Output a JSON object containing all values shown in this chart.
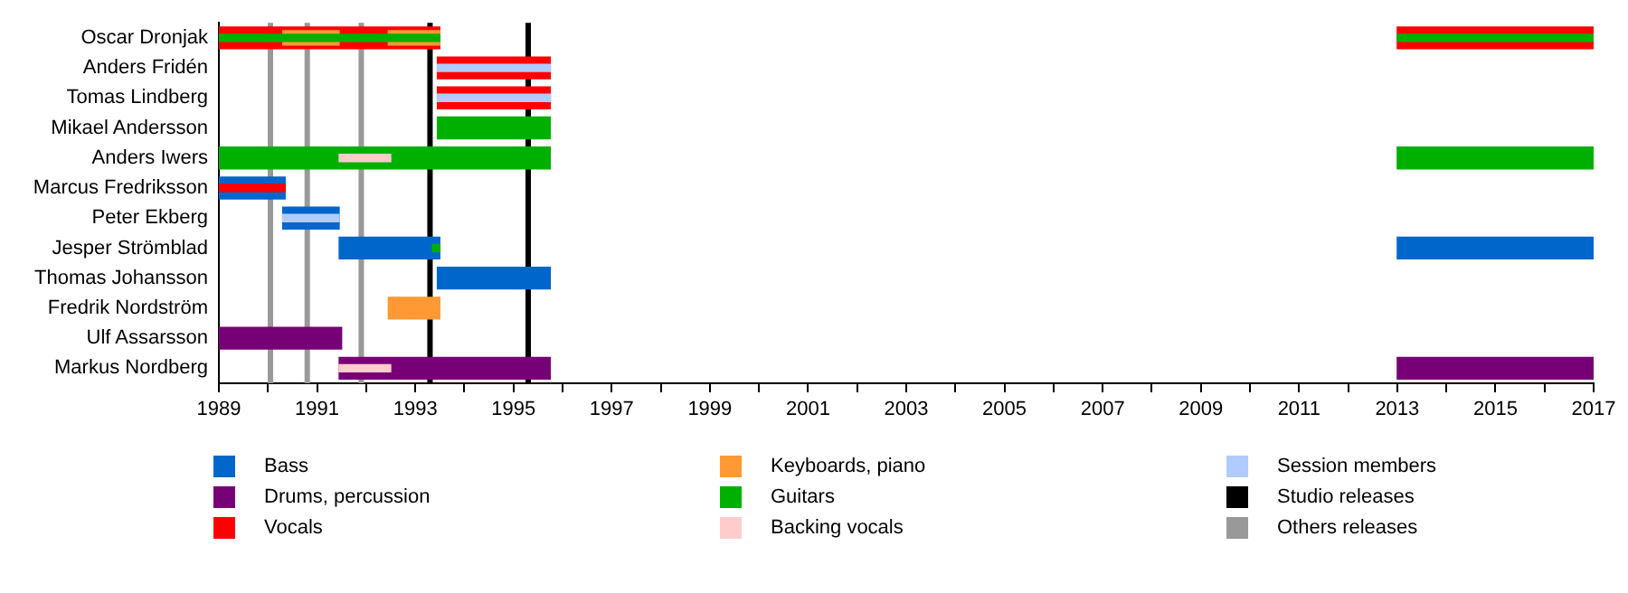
{
  "chart_data": {
    "type": "bar",
    "orientation": "horizontal",
    "categories": [
      "Oscar Dronjak",
      "Anders Fridén",
      "Tomas Lindberg",
      "Mikael Andersson",
      "Anders Iwers",
      "Marcus Fredriksson",
      "Peter Ekberg",
      "Jesper Strömblad",
      "Thomas Johansson",
      "Fredrik Nordström",
      "Ulf Assarsson",
      "Markus Nordberg"
    ],
    "series": [
      {
        "name": "Bass",
        "color": "#0066cc",
        "base": [
          null,
          null,
          null,
          null,
          null,
          1989,
          1990.3,
          1991.45,
          1993.45,
          null,
          null,
          null
        ],
        "values": [
          null,
          null,
          null,
          null,
          null,
          1.35,
          1.15,
          2.05,
          2.3,
          null,
          null,
          null
        ]
      },
      {
        "color": "#0066cc",
        "base": [
          null,
          null,
          null,
          null,
          null,
          null,
          null,
          2013,
          null,
          null,
          null,
          null
        ],
        "values": [
          null,
          null,
          null,
          null,
          null,
          null,
          null,
          4,
          null,
          null,
          null,
          null
        ]
      },
      {
        "name": "Drums, percussion",
        "color": "#770077",
        "base": [
          null,
          null,
          null,
          null,
          null,
          null,
          null,
          null,
          null,
          null,
          1989,
          1991.45
        ],
        "values": [
          null,
          null,
          null,
          null,
          null,
          null,
          null,
          null,
          null,
          null,
          2.5,
          4.3
        ]
      },
      {
        "color": "#770077",
        "base": [
          null,
          null,
          null,
          null,
          null,
          null,
          null,
          null,
          null,
          null,
          null,
          2013
        ],
        "values": [
          null,
          null,
          null,
          null,
          null,
          null,
          null,
          null,
          null,
          null,
          null,
          4
        ]
      },
      {
        "name": "Vocals",
        "color": "#ff0000",
        "base": [
          1989,
          1993.45,
          1993.45,
          null,
          null,
          1989,
          null,
          null,
          null,
          null,
          null,
          null
        ],
        "values": [
          4.5,
          2.3,
          2.3,
          null,
          null,
          1.35,
          null,
          null,
          null,
          null,
          null,
          null
        ]
      },
      {
        "color": "#ff0000",
        "base": [
          2013,
          null,
          null,
          null,
          null,
          null,
          null,
          null,
          null,
          null,
          null,
          null
        ],
        "values": [
          4,
          null,
          null,
          null,
          null,
          null,
          null,
          null,
          null,
          null,
          null,
          null
        ]
      },
      {
        "name": "Keyboards, piano",
        "color": "#ff9933",
        "base": [
          1990.3,
          null,
          null,
          null,
          null,
          null,
          null,
          null,
          null,
          1992.45,
          null,
          null
        ],
        "values": [
          1.15,
          null,
          null,
          null,
          null,
          null,
          null,
          null,
          null,
          1.05,
          null,
          null
        ]
      },
      {
        "color": "#ff9933",
        "base": [
          1992.45,
          null,
          null,
          null,
          null,
          null,
          null,
          null,
          null,
          null,
          null,
          null
        ],
        "values": [
          1.05,
          null,
          null,
          null,
          null,
          null,
          null,
          null,
          null,
          null,
          null,
          null
        ]
      },
      {
        "name": "Guitars",
        "color": "#00b000",
        "base": [
          1989,
          null,
          null,
          1993.45,
          1989,
          null,
          null,
          1993.35,
          null,
          null,
          null,
          null
        ],
        "values": [
          4.5,
          null,
          null,
          2.3,
          6.75,
          null,
          null,
          0.15,
          null,
          null,
          null,
          null
        ]
      },
      {
        "color": "#00b000",
        "base": [
          2013,
          null,
          null,
          null,
          2013,
          null,
          null,
          null,
          null,
          null,
          null,
          null
        ],
        "values": [
          4,
          null,
          null,
          null,
          4,
          null,
          null,
          null,
          null,
          null,
          null,
          null
        ]
      },
      {
        "name": "Backing vocals",
        "color": "#ffcccc",
        "base": [
          null,
          null,
          null,
          null,
          1991.45,
          null,
          null,
          null,
          null,
          null,
          null,
          1991.45
        ],
        "values": [
          null,
          null,
          null,
          null,
          1.05,
          null,
          null,
          null,
          null,
          null,
          null,
          1.05
        ]
      },
      {
        "name": "Session members",
        "color": "#b0ccff",
        "base": [
          null,
          1993.45,
          1993.45,
          null,
          null,
          null,
          1990.3,
          null,
          null,
          null,
          null,
          null
        ],
        "values": [
          null,
          2.3,
          2.3,
          null,
          null,
          null,
          1.15,
          null,
          null,
          null,
          null,
          null
        ]
      }
    ],
    "xlim": [
      1989,
      2017
    ],
    "xticks": [
      1989,
      {
        "value": 1990,
        "label": null
      },
      1991,
      {
        "value": 1992,
        "label": null
      },
      1993,
      {
        "value": 1994,
        "label": null
      },
      1995,
      {
        "value": 1996,
        "label": null
      },
      1997,
      {
        "value": 1998,
        "label": null
      },
      1999,
      {
        "value": 2000,
        "label": null
      },
      2001,
      {
        "value": 2002,
        "label": null
      },
      2003,
      {
        "value": 2004,
        "label": null
      },
      2005,
      {
        "value": 2006,
        "label": null
      },
      2007,
      {
        "value": 2008,
        "label": null
      },
      2009,
      {
        "value": 2010,
        "label": null
      },
      2011,
      {
        "value": 2012,
        "label": null
      },
      2013,
      {
        "value": 2014,
        "label": null
      },
      2015,
      {
        "value": 2016,
        "label": null
      },
      2017
    ],
    "ref_lines": [
      {
        "axis": "x",
        "value": 1993.3,
        "label": "Studio releases",
        "color": "#000000"
      },
      {
        "axis": "x",
        "value": 1995.3,
        "color": "#000000"
      },
      {
        "axis": "x",
        "value": 1990.05,
        "label": "Others releases",
        "color": "#999999"
      },
      {
        "axis": "x",
        "value": 1990.8,
        "color": "#999999"
      },
      {
        "axis": "x",
        "value": 1991.9,
        "color": "#999999"
      }
    ],
    "legend": "bottom",
    "grid": false
  }
}
